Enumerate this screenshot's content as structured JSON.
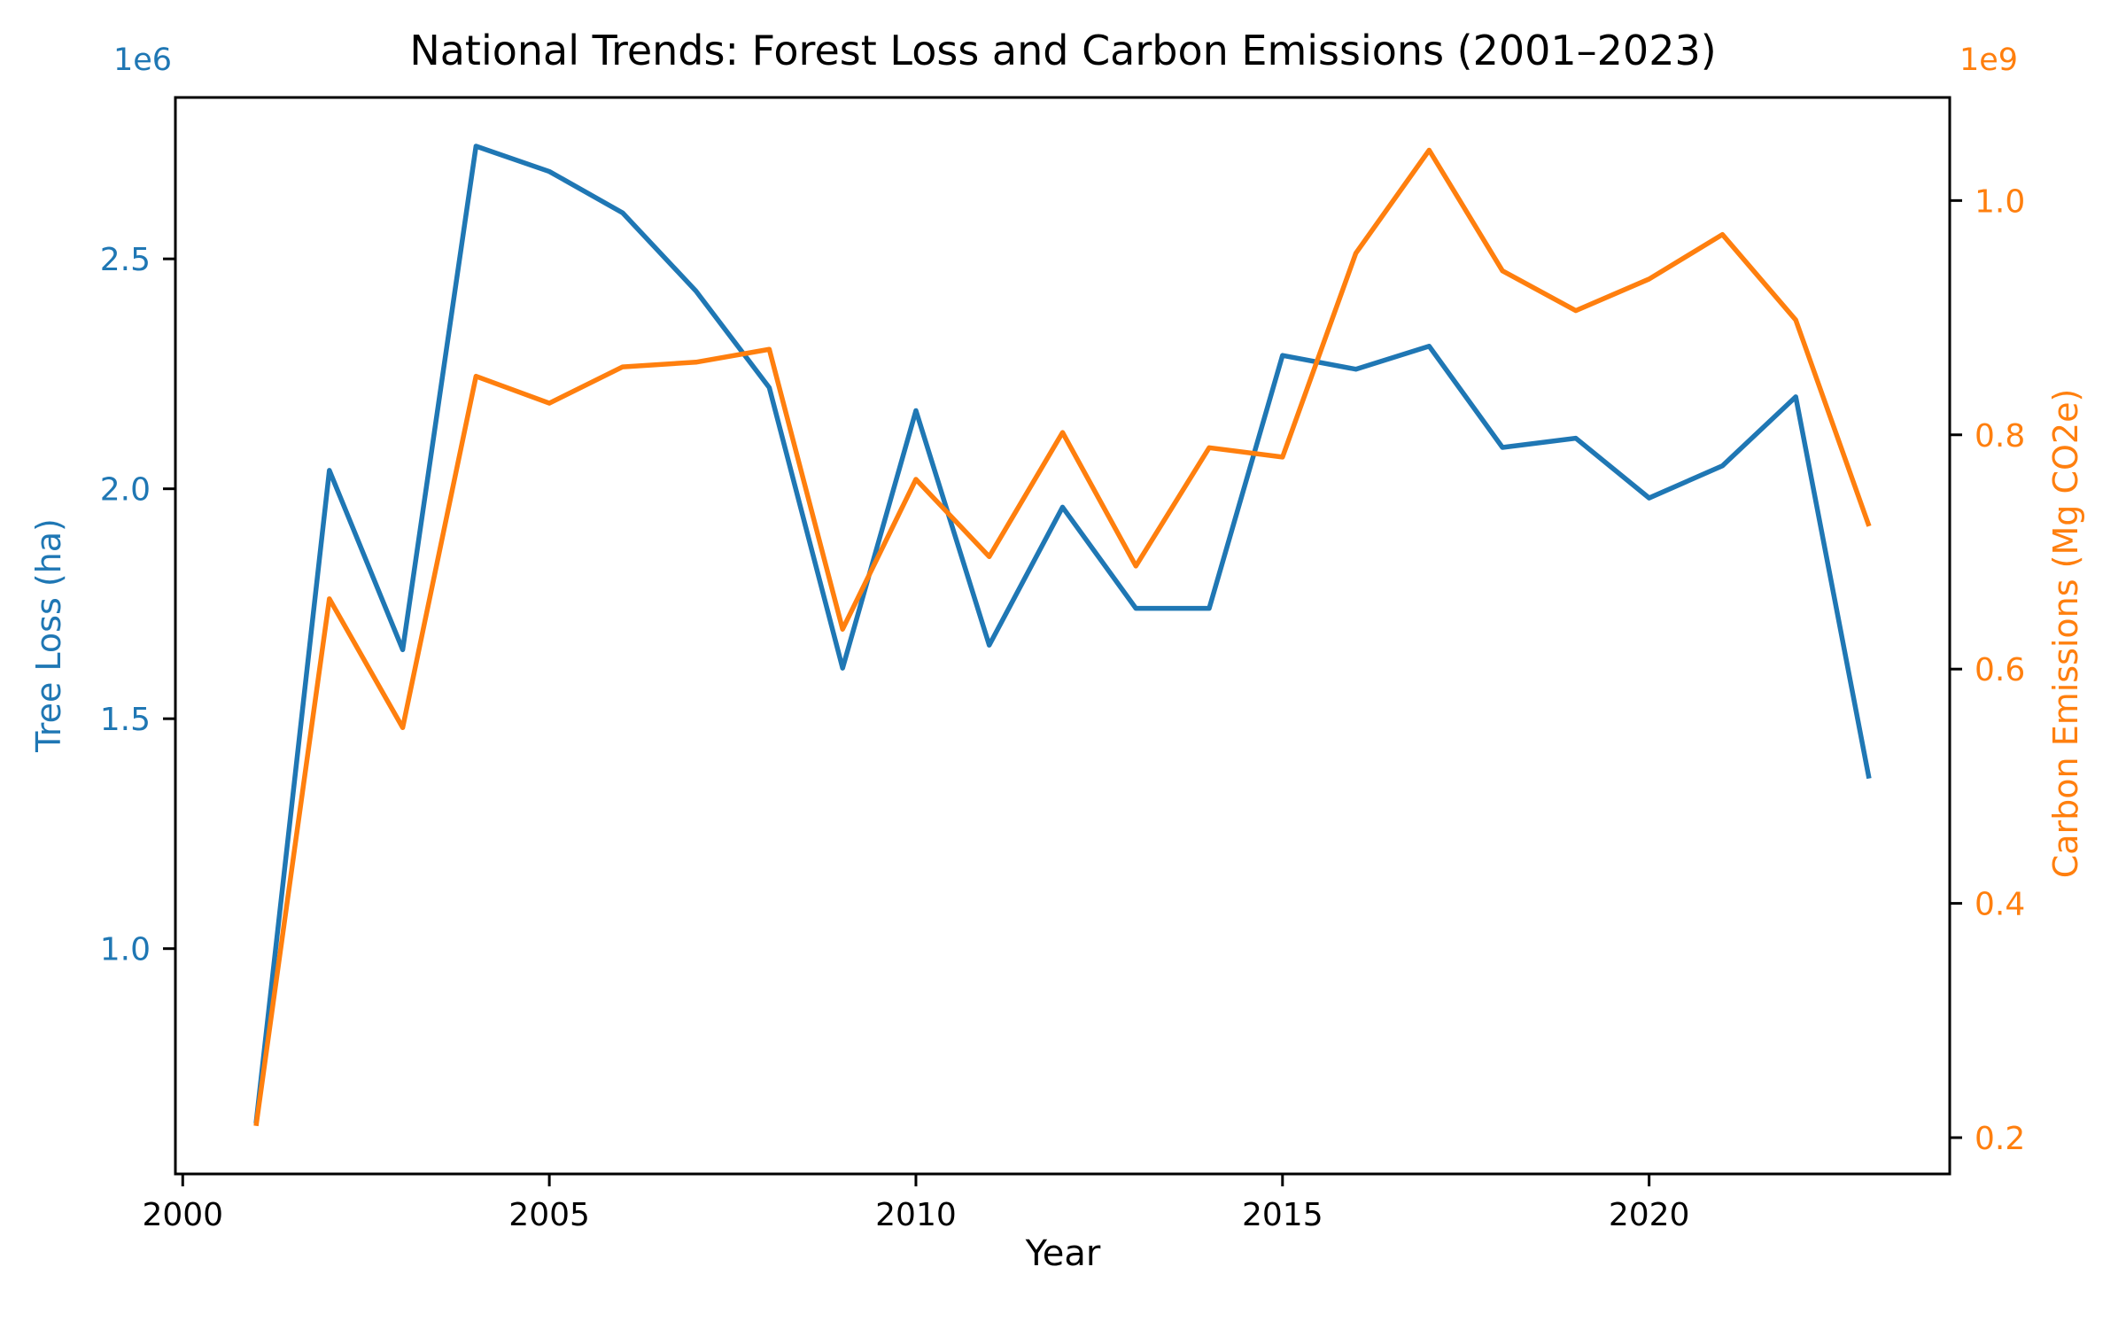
{
  "chart_data": {
    "type": "line",
    "title": "National Trends: Forest Loss and Carbon Emissions (2001–2023)",
    "xlabel": "Year",
    "grid": false,
    "legend": "none",
    "background_color": "#ffffff",
    "x": [
      2001,
      2002,
      2003,
      2004,
      2005,
      2006,
      2007,
      2008,
      2009,
      2010,
      2011,
      2012,
      2013,
      2014,
      2015,
      2016,
      2017,
      2018,
      2019,
      2020,
      2021,
      2022,
      2023
    ],
    "series": [
      {
        "name": "Tree Loss (ha)",
        "axis": "left",
        "color": "#1f77b4",
        "values": [
          620000,
          2040000,
          1650000,
          2745000,
          2690000,
          2600000,
          2430000,
          2220000,
          1610000,
          2170000,
          1660000,
          1960000,
          1740000,
          1740000,
          2290000,
          2260000,
          2310000,
          2090000,
          2110000,
          1980000,
          2050000,
          2200000,
          1370000
        ]
      },
      {
        "name": "Carbon Emissions (Mg CO2e)",
        "axis": "right",
        "color": "#ff7f0e",
        "values": [
          210000000,
          660000000,
          550000000,
          850000000,
          827000000,
          858000000,
          862000000,
          873000000,
          634000000,
          762000000,
          696000000,
          802000000,
          688000000,
          789000000,
          781000000,
          955000000,
          1043000000,
          940000000,
          906000000,
          933000000,
          971000000,
          898000000,
          722000000
        ]
      }
    ],
    "axes": {
      "x": {
        "label": "Year",
        "color": "#000000",
        "range": [
          1999.9,
          2024.1
        ],
        "ticks": [
          2000,
          2005,
          2010,
          2015,
          2020
        ],
        "tick_labels": [
          "2000",
          "2005",
          "2010",
          "2015",
          "2020"
        ]
      },
      "left": {
        "label": "Tree Loss (ha)",
        "offset_label": "1e6",
        "color": "#1f77b4",
        "range": [
          510000,
          2851000
        ],
        "ticks": [
          1000000,
          1500000,
          2000000,
          2500000
        ],
        "tick_labels": [
          "1.0",
          "1.5",
          "2.0",
          "2.5"
        ]
      },
      "right": {
        "label": "Carbon Emissions (Mg CO2e)",
        "offset_label": "1e9",
        "color": "#ff7f0e",
        "range": [
          169000000,
          1088000000
        ],
        "ticks": [
          200000000,
          400000000,
          600000000,
          800000000,
          1000000000
        ],
        "tick_labels": [
          "0.2",
          "0.4",
          "0.6",
          "0.8",
          "1.0"
        ]
      }
    }
  }
}
